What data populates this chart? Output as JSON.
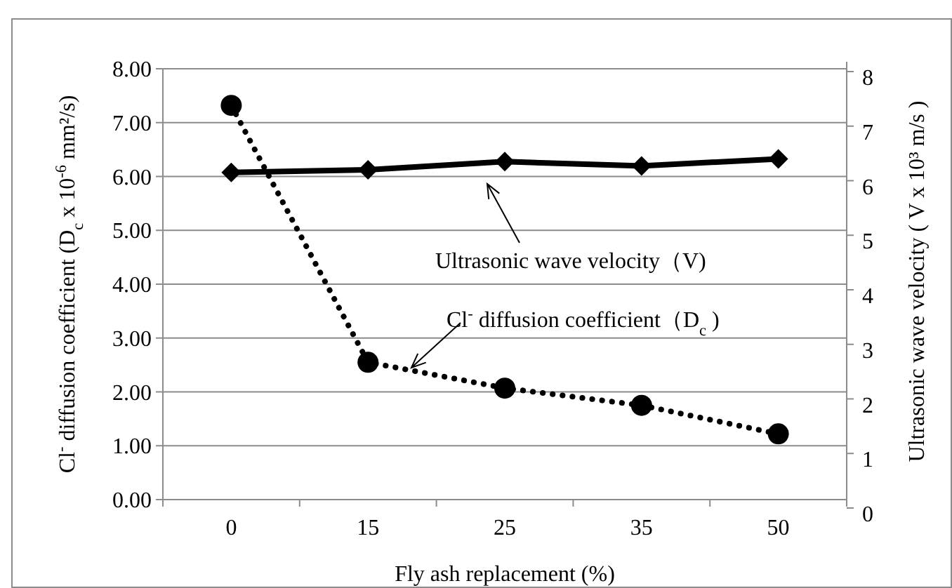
{
  "chart_data": {
    "type": "line",
    "categories": [
      "0",
      "15",
      "25",
      "35",
      "50"
    ],
    "xlabel": "Fly  ash  replacement (%)",
    "ylabel": "Cl$^{-}$ diffusion  coefficient (D$_{c}$ x 10$^{-6}$  mm²/s)",
    "y2label": "Ultrasonic wave velocity ( V x 10³  m/s )",
    "series": [
      {
        "color": "#000000",
        "values": [
          7.32,
          2.55,
          2.07,
          1.75,
          1.22
        ],
        "marker": "circle",
        "line_style": "dotted"
      },
      {
        "color": "#000000",
        "values": [
          6.15,
          6.2,
          6.35,
          6.27,
          6.4
        ],
        "marker": "diamond",
        "line_style": "solid",
        "axis": "y2"
      }
    ],
    "ylim": [
      0,
      8
    ],
    "yticks": [
      {
        "value": 0,
        "label": "0.00"
      },
      {
        "value": 1,
        "label": "1.00"
      },
      {
        "value": 2,
        "label": "2.00"
      },
      {
        "value": 3,
        "label": "3.00"
      },
      {
        "value": 4,
        "label": "4.00"
      },
      {
        "value": 5,
        "label": "5.00"
      },
      {
        "value": 6,
        "label": "6.00"
      },
      {
        "value": 7,
        "label": "7.00"
      },
      {
        "value": 8,
        "label": "8.00"
      }
    ],
    "y2lim": [
      0,
      8
    ],
    "y2ticks": [
      0,
      1,
      2,
      3,
      4,
      5,
      6,
      7,
      8
    ],
    "grid": "y",
    "annotations": [
      "Ultrasonic wave  velocity（V)",
      "Cl$^{-}$ diffusion coefficient（D$_{c}$ )"
    ]
  }
}
